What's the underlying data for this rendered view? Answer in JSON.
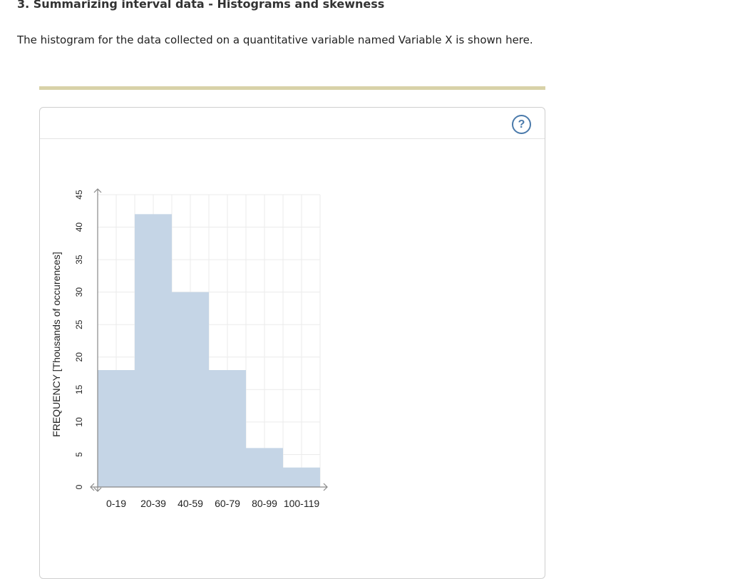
{
  "page": {
    "heading": "3. Summarizing interval data - Histograms and skewness",
    "intro": "The histogram for the data collected on a quantitative variable named Variable X is shown here."
  },
  "panel": {
    "help_label": "?",
    "help_icon": "question-circle-icon"
  },
  "colors": {
    "bar_fill": "#c5d5e6",
    "grid": "#ebebeb",
    "axis": "#888888",
    "divider": "#d8d2a8",
    "help_accent": "#4a7aab"
  },
  "chart_data": {
    "type": "bar",
    "title": "",
    "xlabel": "",
    "ylabel": "FREQUENCY [Thousands of occurences]",
    "categories": [
      "0-19",
      "20-39",
      "40-59",
      "60-79",
      "80-99",
      "100-119"
    ],
    "values": [
      18,
      42,
      30,
      18,
      6,
      3
    ],
    "ylim": [
      0,
      45
    ],
    "yticks": [
      0,
      5,
      10,
      15,
      20,
      25,
      30,
      35,
      40,
      45
    ],
    "grid": true,
    "legend": "none"
  }
}
